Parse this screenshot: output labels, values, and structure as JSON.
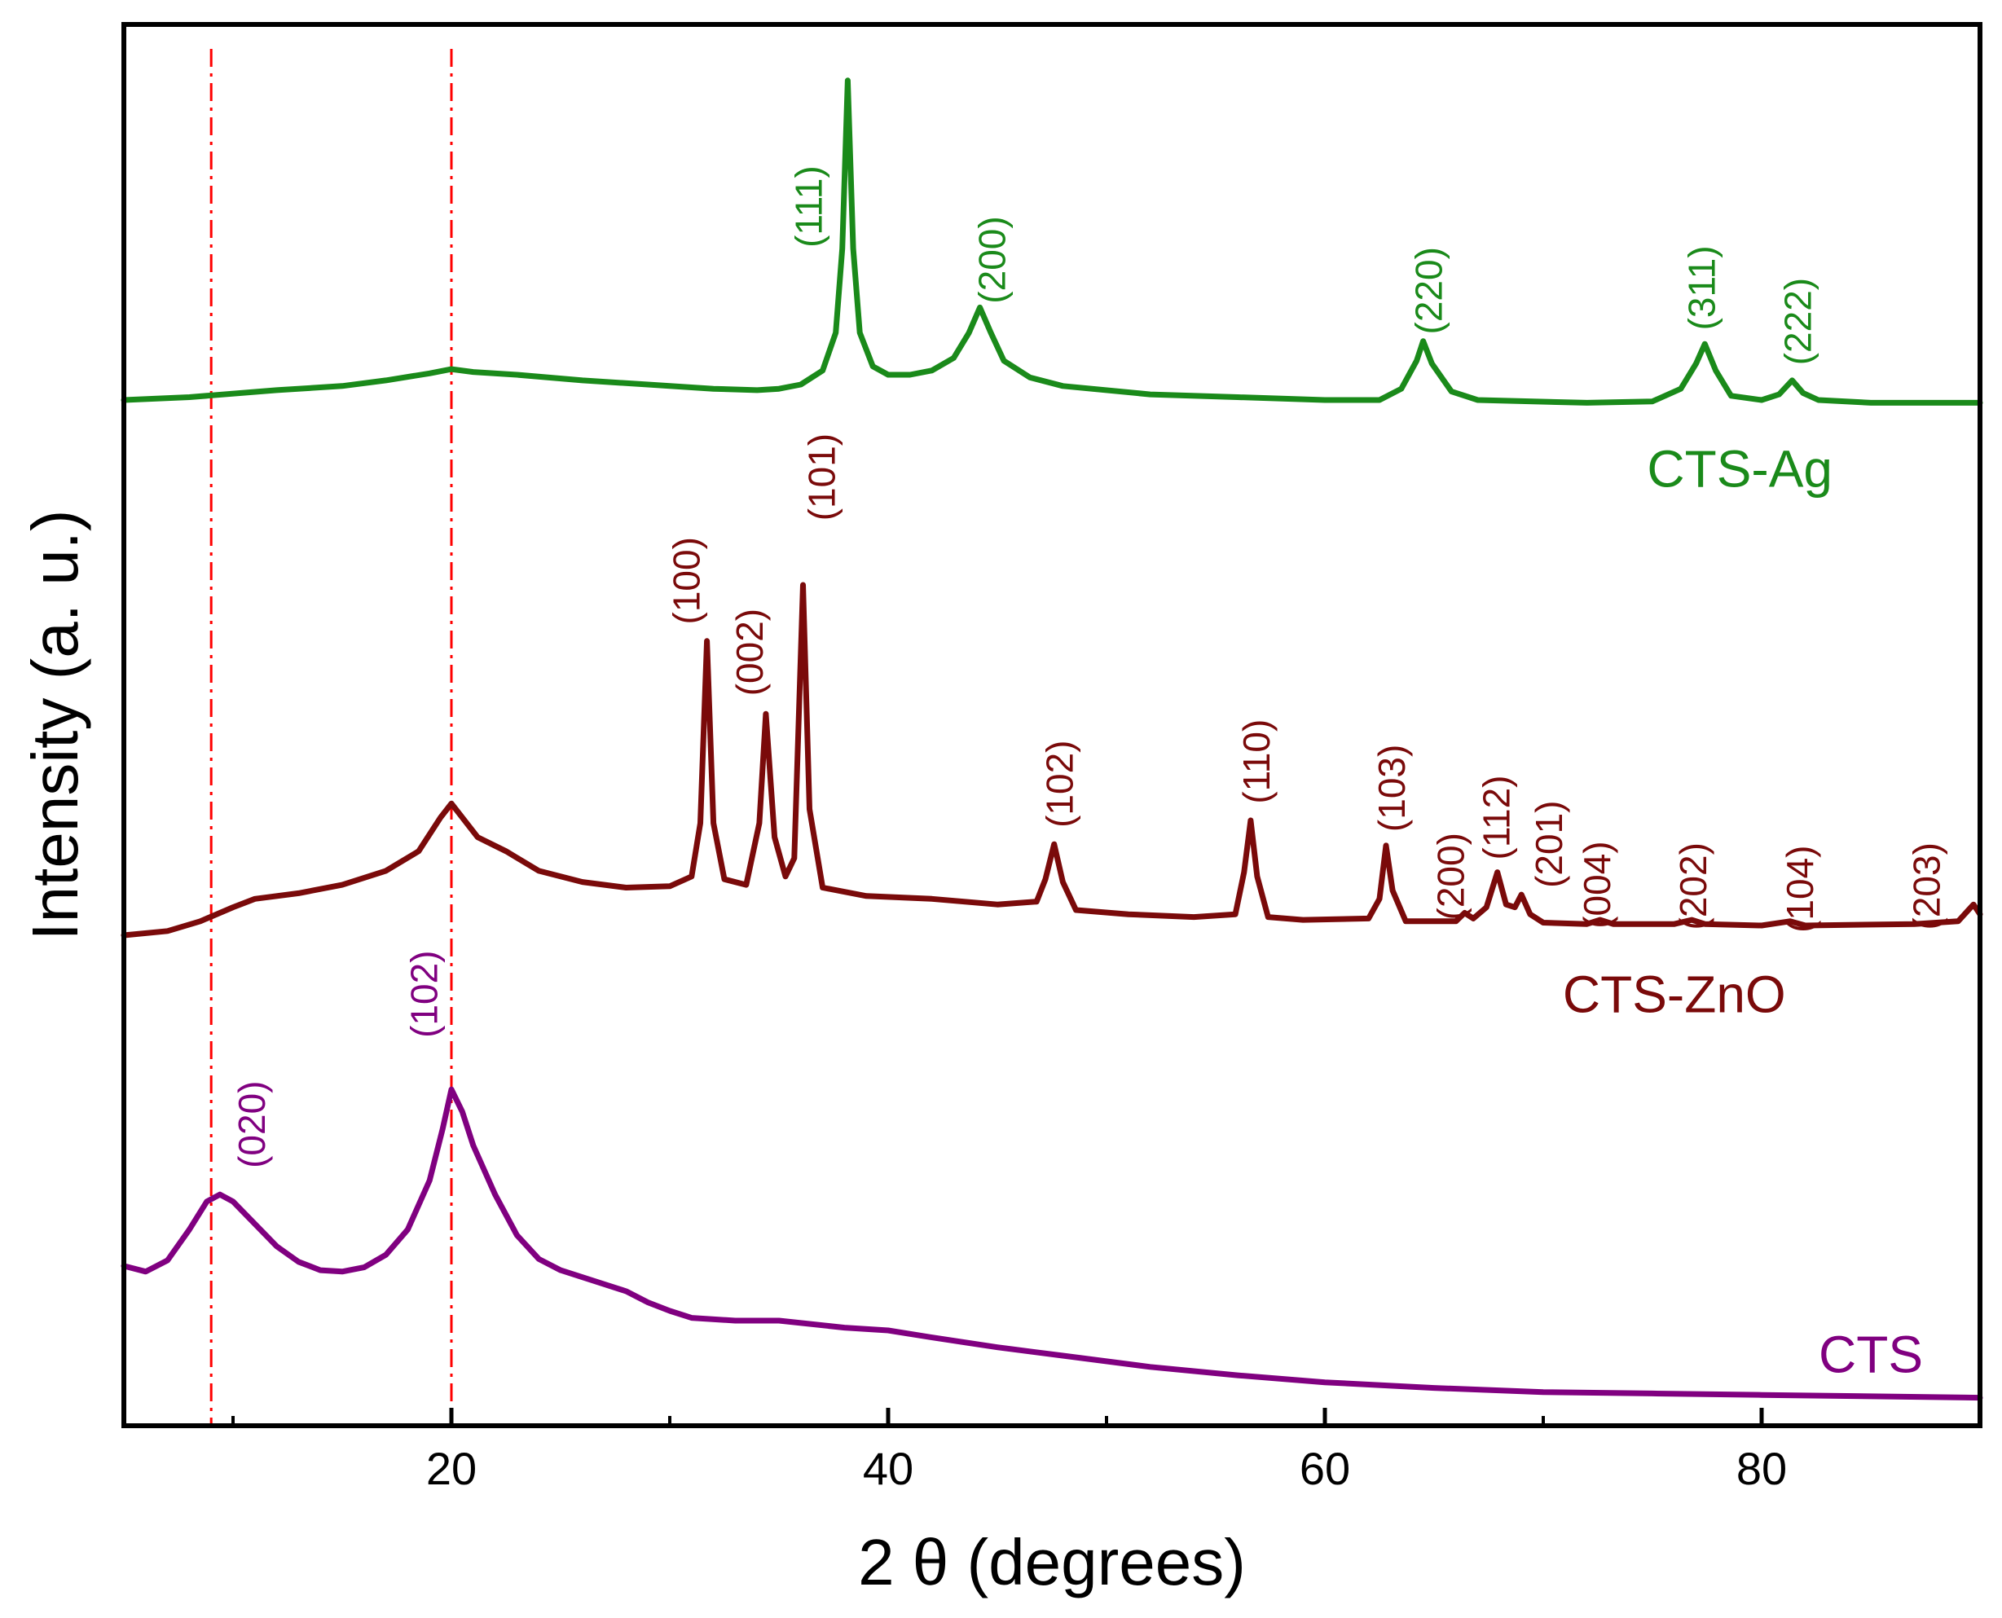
{
  "chart_data": {
    "type": "line",
    "title": "",
    "xlabel": "2 θ (degrees)",
    "ylabel": "Intensity (a. u.)",
    "xlim": [
      5,
      90
    ],
    "ylim": [
      0,
      100
    ],
    "xticks": [
      20,
      40,
      60,
      80
    ],
    "xtick_labels": [
      "20",
      "40",
      "60",
      "80"
    ],
    "minor_xticks": [
      10,
      30,
      50,
      70,
      90
    ],
    "reference_lines": [
      9,
      20
    ],
    "series": [
      {
        "name": "CTS-Ag",
        "color": "#1a8a1a",
        "label_x": 79,
        "label_y": 68,
        "points": [
          [
            5,
            73.2
          ],
          [
            8,
            73.4
          ],
          [
            12,
            73.9
          ],
          [
            15,
            74.2
          ],
          [
            17,
            74.6
          ],
          [
            19,
            75.1
          ],
          [
            20,
            75.4
          ],
          [
            21,
            75.2
          ],
          [
            23,
            75.0
          ],
          [
            26,
            74.6
          ],
          [
            29,
            74.3
          ],
          [
            32,
            74.0
          ],
          [
            34,
            73.9
          ],
          [
            35,
            74.0
          ],
          [
            36,
            74.3
          ],
          [
            37,
            75.3
          ],
          [
            37.6,
            78
          ],
          [
            37.9,
            84
          ],
          [
            38.15,
            96.0
          ],
          [
            38.4,
            84
          ],
          [
            38.7,
            78
          ],
          [
            39.3,
            75.6
          ],
          [
            40,
            75.0
          ],
          [
            41,
            75.0
          ],
          [
            42,
            75.3
          ],
          [
            43,
            76.2
          ],
          [
            43.7,
            78.0
          ],
          [
            44.2,
            79.8
          ],
          [
            44.7,
            78.0
          ],
          [
            45.3,
            76.0
          ],
          [
            46.5,
            74.8
          ],
          [
            48,
            74.2
          ],
          [
            52,
            73.6
          ],
          [
            56,
            73.4
          ],
          [
            60,
            73.2
          ],
          [
            62.5,
            73.2
          ],
          [
            63.5,
            74.0
          ],
          [
            64.2,
            76.0
          ],
          [
            64.5,
            77.4
          ],
          [
            64.9,
            75.8
          ],
          [
            65.8,
            73.8
          ],
          [
            67,
            73.2
          ],
          [
            72,
            73.0
          ],
          [
            75,
            73.1
          ],
          [
            76.3,
            74.0
          ],
          [
            77.0,
            75.8
          ],
          [
            77.4,
            77.2
          ],
          [
            77.9,
            75.3
          ],
          [
            78.6,
            73.5
          ],
          [
            80,
            73.2
          ],
          [
            80.8,
            73.6
          ],
          [
            81.4,
            74.6
          ],
          [
            81.9,
            73.7
          ],
          [
            82.6,
            73.2
          ],
          [
            85,
            73.0
          ],
          [
            88,
            73.0
          ],
          [
            90,
            73.0
          ]
        ]
      },
      {
        "name": "CTS-ZnO",
        "color": "#7a0a0a",
        "label_x": 76,
        "label_y": 30.5,
        "points": [
          [
            5,
            35.0
          ],
          [
            7,
            35.3
          ],
          [
            8.5,
            36.0
          ],
          [
            10,
            37.0
          ],
          [
            11,
            37.6
          ],
          [
            13,
            38.0
          ],
          [
            15,
            38.6
          ],
          [
            17,
            39.6
          ],
          [
            18.5,
            41.0
          ],
          [
            19.5,
            43.4
          ],
          [
            20.0,
            44.4
          ],
          [
            20.5,
            43.4
          ],
          [
            21.2,
            42.0
          ],
          [
            22.5,
            41.0
          ],
          [
            24,
            39.6
          ],
          [
            26,
            38.8
          ],
          [
            28,
            38.4
          ],
          [
            30,
            38.5
          ],
          [
            31,
            39.2
          ],
          [
            31.4,
            43
          ],
          [
            31.7,
            56.0
          ],
          [
            32.0,
            43
          ],
          [
            32.5,
            39.0
          ],
          [
            33.5,
            38.6
          ],
          [
            34.1,
            43
          ],
          [
            34.4,
            50.8
          ],
          [
            34.8,
            42
          ],
          [
            35.3,
            39.2
          ],
          [
            35.7,
            40.5
          ],
          [
            36.1,
            60.0
          ],
          [
            36.4,
            44
          ],
          [
            37,
            38.4
          ],
          [
            39,
            37.8
          ],
          [
            42,
            37.6
          ],
          [
            45,
            37.2
          ],
          [
            46.8,
            37.4
          ],
          [
            47.2,
            39.0
          ],
          [
            47.6,
            41.5
          ],
          [
            48.0,
            38.8
          ],
          [
            48.6,
            36.8
          ],
          [
            51,
            36.5
          ],
          [
            54,
            36.3
          ],
          [
            55.9,
            36.5
          ],
          [
            56.3,
            39.5
          ],
          [
            56.6,
            43.2
          ],
          [
            56.9,
            39.2
          ],
          [
            57.4,
            36.3
          ],
          [
            59,
            36.1
          ],
          [
            62,
            36.2
          ],
          [
            62.5,
            37.6
          ],
          [
            62.8,
            41.4
          ],
          [
            63.1,
            38.2
          ],
          [
            63.7,
            36.0
          ],
          [
            66,
            36.0
          ],
          [
            66.4,
            36.6
          ],
          [
            66.8,
            36.2
          ],
          [
            67.4,
            37.0
          ],
          [
            67.9,
            39.5
          ],
          [
            68.3,
            37.2
          ],
          [
            68.7,
            37.0
          ],
          [
            69.0,
            37.9
          ],
          [
            69.4,
            36.5
          ],
          [
            70,
            35.9
          ],
          [
            72,
            35.8
          ],
          [
            72.6,
            36.1
          ],
          [
            73.2,
            35.8
          ],
          [
            76,
            35.8
          ],
          [
            76.8,
            36.1
          ],
          [
            77.4,
            35.8
          ],
          [
            80,
            35.7
          ],
          [
            81.3,
            36.0
          ],
          [
            82,
            35.7
          ],
          [
            87,
            35.8
          ],
          [
            89,
            36.0
          ],
          [
            89.7,
            37.2
          ],
          [
            90,
            36.5
          ]
        ]
      },
      {
        "name": "CTS",
        "color": "#800080",
        "label_x": 85,
        "label_y": 4.8,
        "points": [
          [
            5,
            11.4
          ],
          [
            6,
            11.0
          ],
          [
            7,
            11.8
          ],
          [
            8,
            14.0
          ],
          [
            8.8,
            16.0
          ],
          [
            9.4,
            16.5
          ],
          [
            10,
            16.0
          ],
          [
            11,
            14.4
          ],
          [
            12,
            12.8
          ],
          [
            13,
            11.7
          ],
          [
            14,
            11.1
          ],
          [
            15,
            11.0
          ],
          [
            16,
            11.3
          ],
          [
            17,
            12.2
          ],
          [
            18,
            14.0
          ],
          [
            19,
            17.5
          ],
          [
            19.6,
            21.2
          ],
          [
            20.0,
            24.0
          ],
          [
            20.5,
            22.4
          ],
          [
            21,
            20.0
          ],
          [
            22,
            16.5
          ],
          [
            23,
            13.6
          ],
          [
            24,
            11.9
          ],
          [
            25,
            11.1
          ],
          [
            26,
            10.6
          ],
          [
            27,
            10.1
          ],
          [
            28,
            9.6
          ],
          [
            29,
            8.8
          ],
          [
            30,
            8.2
          ],
          [
            31,
            7.7
          ],
          [
            33,
            7.5
          ],
          [
            35,
            7.5
          ],
          [
            38,
            7.0
          ],
          [
            40,
            6.8
          ],
          [
            42,
            6.3
          ],
          [
            45,
            5.6
          ],
          [
            48,
            5.0
          ],
          [
            52,
            4.2
          ],
          [
            56,
            3.6
          ],
          [
            60,
            3.1
          ],
          [
            65,
            2.7
          ],
          [
            70,
            2.4
          ],
          [
            75,
            2.3
          ],
          [
            80,
            2.2
          ],
          [
            85,
            2.1
          ],
          [
            90,
            2.0
          ]
        ]
      }
    ],
    "annotations": [
      {
        "text": "(111)",
        "series": "CTS-Ag",
        "x": 36.5,
        "y": 87
      },
      {
        "text": "(200)",
        "series": "CTS-Ag",
        "x": 44.9,
        "y": 83.2
      },
      {
        "text": "(220)",
        "series": "CTS-Ag",
        "x": 64.9,
        "y": 81.0
      },
      {
        "text": "(311)",
        "series": "CTS-Ag",
        "x": 77.4,
        "y": 81.2
      },
      {
        "text": "(222)",
        "series": "CTS-Ag",
        "x": 81.8,
        "y": 78.8
      },
      {
        "text": "(100)",
        "series": "CTS-ZnO",
        "x": 30.9,
        "y": 60.3
      },
      {
        "text": "(002)",
        "series": "CTS-ZnO",
        "x": 33.8,
        "y": 55.2
      },
      {
        "text": "(101)",
        "series": "CTS-ZnO",
        "x": 37.1,
        "y": 67.7
      },
      {
        "text": "(102)",
        "series": "CTS-ZnO",
        "x": 48.0,
        "y": 45.8
      },
      {
        "text": "(110)",
        "series": "CTS-ZnO",
        "x": 57.0,
        "y": 47.4
      },
      {
        "text": "(103)",
        "series": "CTS-ZnO",
        "x": 63.2,
        "y": 45.5
      },
      {
        "text": "(200)",
        "series": "CTS-ZnO",
        "x": 65.9,
        "y": 39.2
      },
      {
        "text": "(112)",
        "series": "CTS-ZnO",
        "x": 68.0,
        "y": 43.4
      },
      {
        "text": "(201)",
        "series": "CTS-ZnO",
        "x": 70.4,
        "y": 41.5
      },
      {
        "text": "(004)",
        "series": "CTS-ZnO",
        "x": 72.6,
        "y": 38.6
      },
      {
        "text": "(202)",
        "series": "CTS-ZnO",
        "x": 77.0,
        "y": 38.5
      },
      {
        "text": "(104)",
        "series": "CTS-ZnO",
        "x": 81.9,
        "y": 38.3
      },
      {
        "text": "(203)",
        "series": "CTS-ZnO",
        "x": 87.7,
        "y": 38.5
      },
      {
        "text": "(020)",
        "series": "CTS",
        "x": 11.0,
        "y": 21.5
      },
      {
        "text": "(102)",
        "series": "CTS",
        "x": 18.9,
        "y": 30.8
      }
    ]
  }
}
